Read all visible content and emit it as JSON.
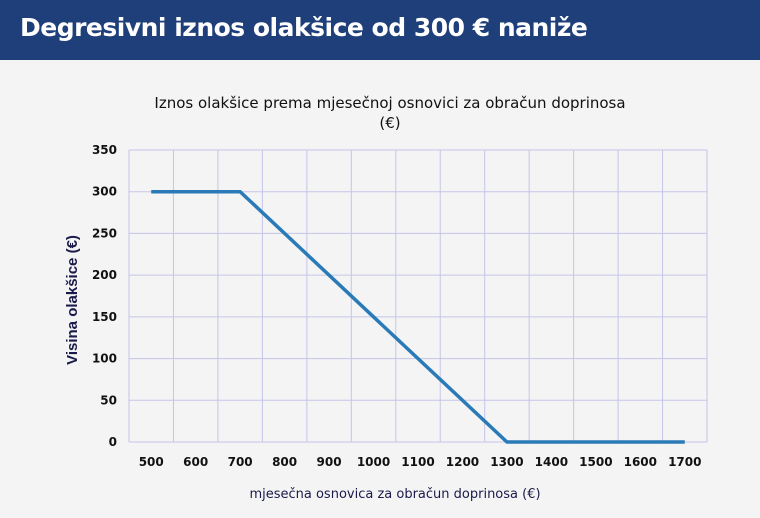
{
  "header": {
    "title": "Degresivni iznos olakšice od 300 € naniže"
  },
  "chart_data": {
    "type": "line",
    "title_line1": "Iznos olakšice prema mjesečnoj osnovici za obračun doprinosa",
    "title_line2": "(€)",
    "xlabel": "mjesečna osnovica za obračun doprinosa (€)",
    "ylabel": "Visina olakšice (€)",
    "x_ticks": [
      500,
      600,
      700,
      800,
      900,
      1000,
      1100,
      1200,
      1300,
      1400,
      1500,
      1600,
      1700
    ],
    "y_ticks": [
      0,
      50,
      100,
      150,
      200,
      250,
      300,
      350
    ],
    "xlim": [
      450,
      1750
    ],
    "ylim": [
      0,
      350
    ],
    "grid": true,
    "series": [
      {
        "color": "#2a7ab8",
        "x": [
          500,
          700,
          1300,
          1700
        ],
        "y": [
          300,
          300,
          0,
          0
        ]
      }
    ],
    "grid_color": "#c5c5e8"
  }
}
